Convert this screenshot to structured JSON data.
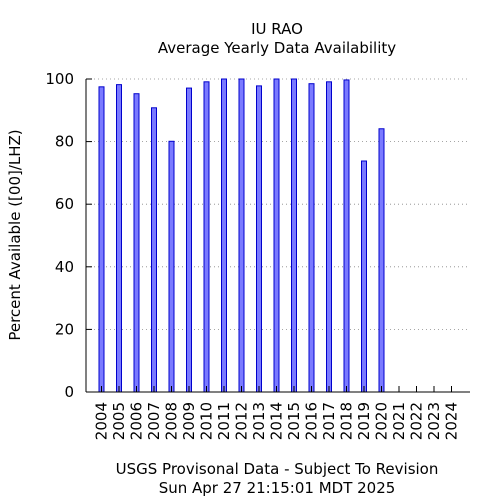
{
  "chart_data": {
    "type": "bar",
    "title": "IU RAO",
    "subtitle": "Average Yearly Data Availability",
    "ylabel": "Percent Available ([00]/LHZ)",
    "xlabel": "",
    "categories": [
      "2004",
      "2005",
      "2006",
      "2007",
      "2008",
      "2009",
      "2010",
      "2011",
      "2012",
      "2013",
      "2014",
      "2015",
      "2016",
      "2017",
      "2018",
      "2019",
      "2020",
      "2021",
      "2022",
      "2023",
      "2024"
    ],
    "values": [
      97.5,
      98.2,
      95.3,
      90.8,
      80.1,
      97.1,
      99.1,
      100,
      100,
      97.8,
      100,
      100,
      98.5,
      99.1,
      99.7,
      73.8,
      84.1,
      null,
      null,
      null,
      null
    ],
    "ylim": [
      0,
      100
    ],
    "yticks": [
      0,
      20,
      40,
      60,
      80,
      100
    ],
    "grid": true,
    "bar_color": "#7a7aff",
    "bar_edge_color": "#0000cc",
    "footer_line1": "USGS Provisonal Data - Subject To Revision",
    "footer_line2": "Sun Apr 27 21:15:01 MDT 2025"
  }
}
